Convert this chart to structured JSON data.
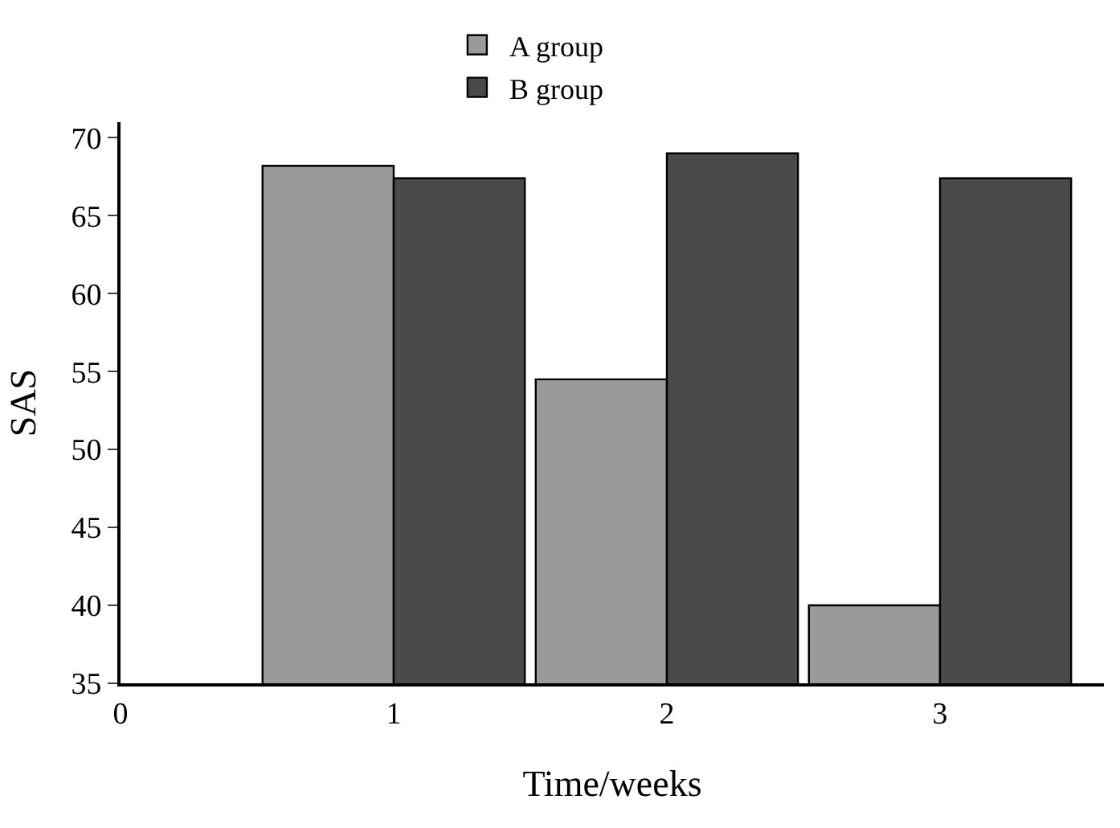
{
  "chart_data": {
    "type": "bar",
    "xlabel": "Time/weeks",
    "ylabel": "SAS",
    "x": [
      1,
      2,
      3
    ],
    "series": [
      {
        "name": "A group",
        "color": "#9a9a9a",
        "values": [
          68.2,
          54.5,
          40.0
        ]
      },
      {
        "name": "B group",
        "color": "#4a4a4a",
        "values": [
          67.4,
          69.0,
          67.4
        ]
      }
    ],
    "xlim": [
      0,
      3.6
    ],
    "xticks": [
      0,
      1,
      2,
      3
    ],
    "ylim": [
      35,
      71
    ],
    "yticks": [
      35,
      40,
      45,
      50,
      55,
      60,
      65,
      70
    ],
    "legend": "top"
  }
}
